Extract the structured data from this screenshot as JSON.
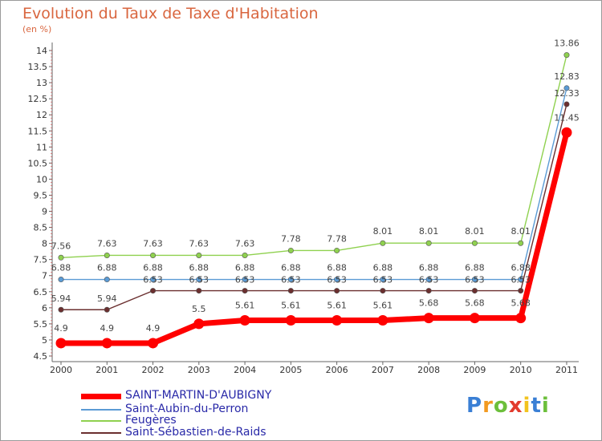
{
  "chart_data": {
    "type": "line",
    "title": "Evolution du Taux de Taxe d'Habitation",
    "subtitle": "(en %)",
    "xlabel": "",
    "ylabel": "",
    "x": [
      "2000",
      "2001",
      "2002",
      "2003",
      "2004",
      "2005",
      "2006",
      "2007",
      "2008",
      "2009",
      "2010",
      "2011"
    ],
    "ylim": [
      4.5,
      14
    ],
    "yticks": [
      "4.5",
      "5",
      "5.5",
      "6",
      "6.5",
      "7",
      "7.5",
      "8",
      "8.5",
      "9",
      "9.5",
      "10",
      "10.5",
      "11",
      "11.5",
      "12",
      "12.5",
      "13",
      "13.5",
      "14"
    ],
    "grid": false,
    "legend_position": "bottom-left",
    "series": [
      {
        "name": "SAINT-MARTIN-D'AUBIGNY",
        "color": "#ff0000",
        "values": [
          4.9,
          4.9,
          4.9,
          5.5,
          5.61,
          5.61,
          5.61,
          5.61,
          5.68,
          5.68,
          5.68,
          11.45
        ],
        "labels": [
          "4.9",
          "4.9",
          "4.9",
          "5.5",
          "5.61",
          "5.61",
          "5.61",
          "5.61",
          "5.68",
          "5.68",
          "5.68",
          "11.45"
        ]
      },
      {
        "name": "Saint-Aubin-du-Perron",
        "color": "#5b9bd5",
        "values": [
          6.88,
          6.88,
          6.88,
          6.88,
          6.88,
          6.88,
          6.88,
          6.88,
          6.88,
          6.88,
          6.88,
          12.83
        ],
        "labels": [
          "6.88",
          "6.88",
          "6.88",
          "6.88",
          "6.88",
          "6.88",
          "6.88",
          "6.88",
          "6.88",
          "6.88",
          "6.88",
          "12.83"
        ]
      },
      {
        "name": "Feugères",
        "color": "#8fd14f",
        "values": [
          7.56,
          7.63,
          7.63,
          7.63,
          7.63,
          7.78,
          7.78,
          8.01,
          8.01,
          8.01,
          8.01,
          13.86
        ],
        "labels": [
          "7.56",
          "7.63",
          "7.63",
          "7.63",
          "7.63",
          "7.78",
          "7.78",
          "8.01",
          "8.01",
          "8.01",
          "8.01",
          "13.86"
        ]
      },
      {
        "name": "Saint-Sébastien-de-Raids",
        "color": "#6b2f2f",
        "values": [
          5.94,
          5.94,
          6.53,
          6.53,
          6.53,
          6.53,
          6.53,
          6.53,
          6.53,
          6.53,
          6.53,
          12.33
        ],
        "labels": [
          "5.94",
          "5.94",
          "6.53",
          "6.53",
          "6.53",
          "6.53",
          "6.53",
          "6.53",
          "6.53",
          "6.53",
          "6.53",
          "12.33"
        ]
      }
    ]
  },
  "logo": {
    "letters": [
      "P",
      "r",
      "o",
      "x",
      "i",
      "t",
      "i"
    ],
    "colors": [
      "#3a7fd5",
      "#f29a21",
      "#6cbf3b",
      "#e23b2e",
      "#f2c31f",
      "#3a7fd5",
      "#6cbf3b"
    ]
  }
}
